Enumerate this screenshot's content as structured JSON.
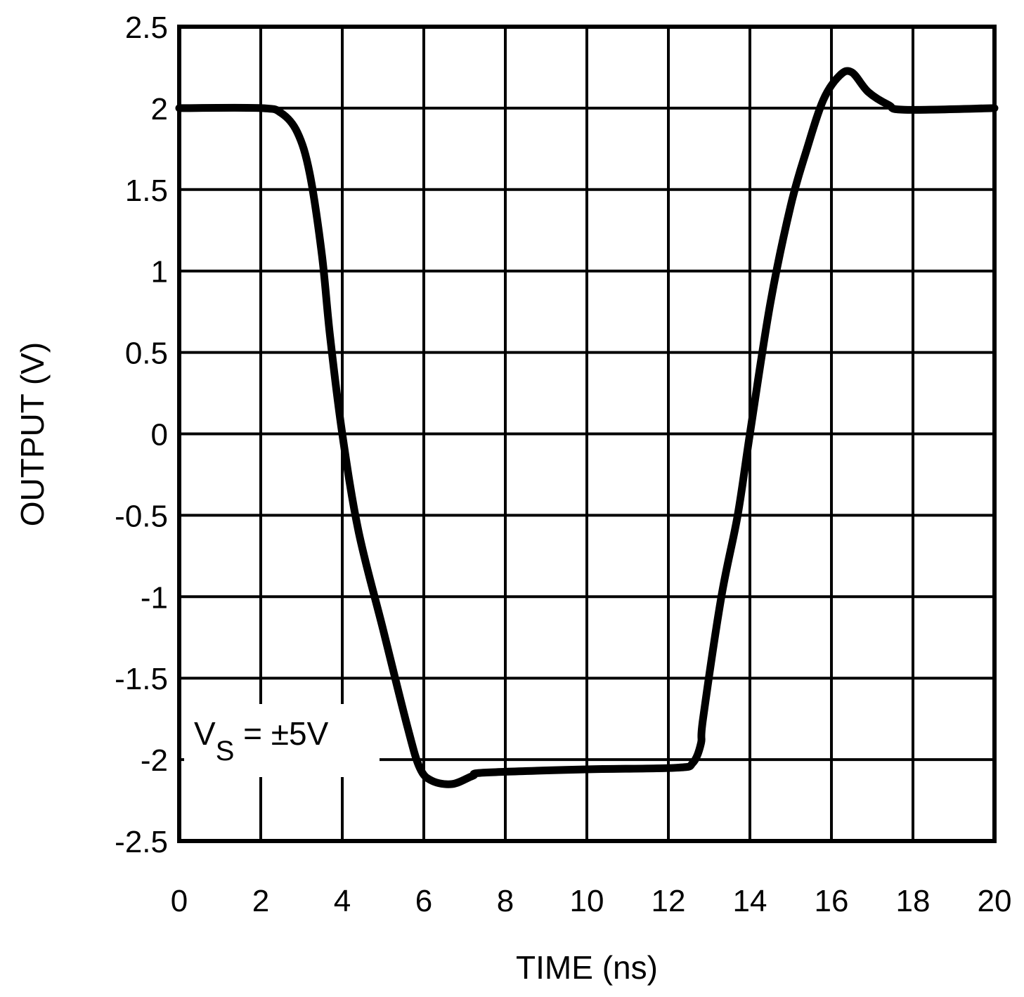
{
  "chart_data": {
    "type": "line",
    "title": "",
    "xlabel": "TIME (ns)",
    "ylabel": "OUTPUT (V)",
    "xlim": [
      0,
      20
    ],
    "ylim": [
      -2.5,
      2.5
    ],
    "grid": true,
    "x_ticks": [
      "0",
      "2",
      "4",
      "6",
      "8",
      "10",
      "12",
      "14",
      "16",
      "18",
      "20"
    ],
    "y_ticks": [
      "2.5",
      "2",
      "1.5",
      "1",
      "0.5",
      "0",
      "-0.5",
      "-1",
      "-1.5",
      "-2",
      "-2.5"
    ],
    "annotation": {
      "text_main": "V",
      "text_sub": "S",
      "text_rest": " = ±5V"
    },
    "series": [
      {
        "name": "Output",
        "color": "#000000",
        "x": [
          0,
          2.0,
          2.5,
          2.9,
          3.2,
          3.5,
          3.7,
          4.0,
          4.4,
          5.0,
          5.6,
          5.9,
          6.2,
          6.7,
          7.2,
          7.5,
          10.0,
          12.2,
          12.6,
          12.8,
          12.85,
          13.3,
          13.7,
          14.0,
          14.5,
          15.0,
          15.4,
          15.8,
          16.2,
          16.5,
          16.9,
          17.4,
          17.8,
          20.0
        ],
        "values": [
          2.0,
          2.0,
          1.97,
          1.85,
          1.6,
          1.1,
          0.6,
          0.0,
          -0.6,
          -1.2,
          -1.8,
          -2.05,
          -2.13,
          -2.15,
          -2.1,
          -2.08,
          -2.06,
          -2.05,
          -2.02,
          -1.9,
          -1.75,
          -1.0,
          -0.5,
          0.0,
          0.8,
          1.4,
          1.75,
          2.05,
          2.2,
          2.22,
          2.1,
          2.02,
          1.99,
          2.0
        ]
      }
    ]
  }
}
